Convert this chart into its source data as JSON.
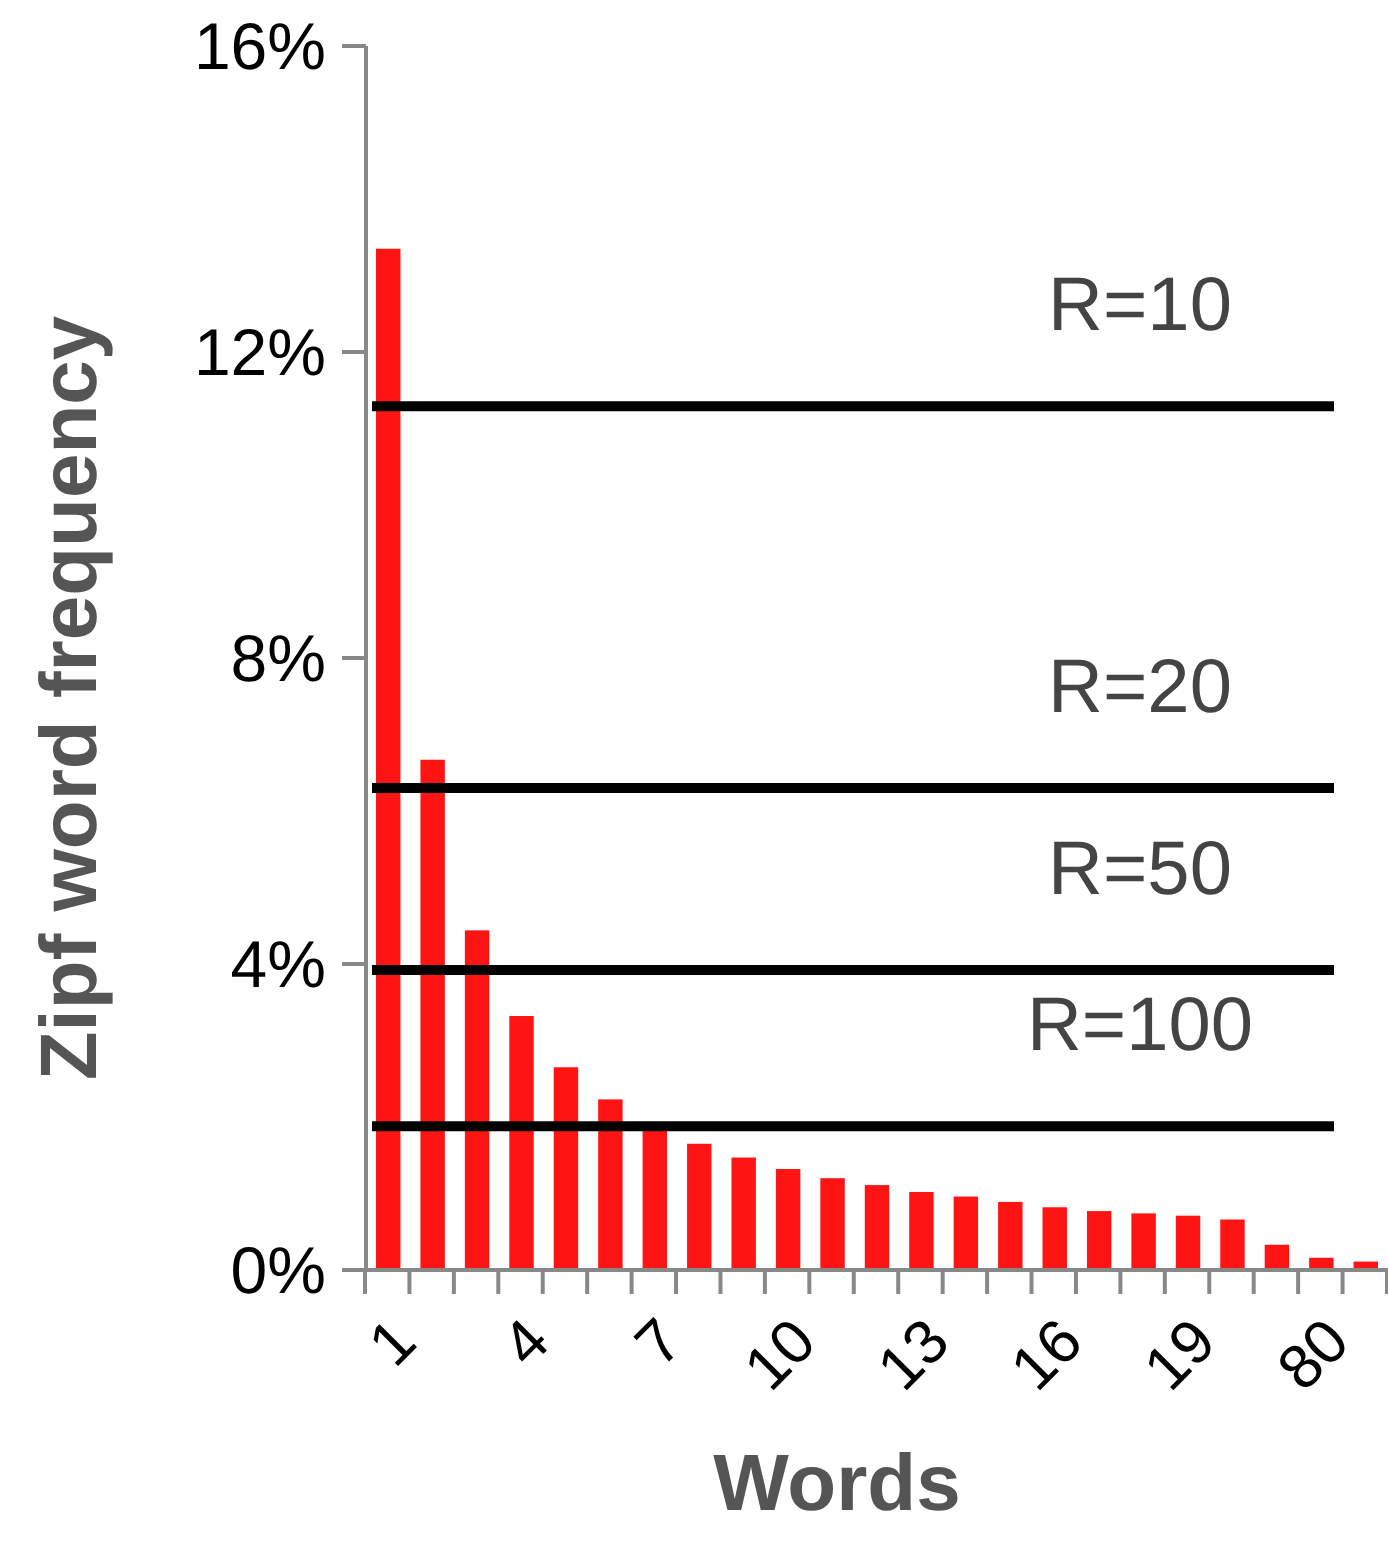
{
  "chart_data": {
    "type": "bar",
    "xlabel": "Words",
    "ylabel": "Zipf word frequency",
    "categories": [
      "1",
      null,
      null,
      "4",
      null,
      null,
      "7",
      null,
      null,
      "10",
      null,
      null,
      "13",
      null,
      null,
      "16",
      null,
      null,
      "19",
      null,
      null,
      "80",
      null
    ],
    "values": [
      13.35,
      6.67,
      4.44,
      3.32,
      2.65,
      2.23,
      1.83,
      1.65,
      1.47,
      1.32,
      1.2,
      1.11,
      1.02,
      0.96,
      0.89,
      0.82,
      0.77,
      0.74,
      0.71,
      0.66,
      0.33,
      0.16,
      0.11
    ],
    "color": "#ff1414",
    "ylim": [
      0,
      16
    ],
    "yticks": [
      {
        "value": 0,
        "label": "0%"
      },
      {
        "value": 4,
        "label": "4%"
      },
      {
        "value": 8,
        "label": "8%"
      },
      {
        "value": 12,
        "label": "12%"
      },
      {
        "value": 16,
        "label": "16%"
      }
    ],
    "ref_lines": [
      {
        "axis": "y",
        "value": 11.29,
        "color": "#000000"
      },
      {
        "axis": "y",
        "value": 6.3,
        "color": "#000000"
      },
      {
        "axis": "y",
        "value": 3.92,
        "color": "#000000"
      },
      {
        "axis": "y",
        "value": 1.88,
        "color": "#000000"
      }
    ],
    "annotations": [
      {
        "text": "R=10",
        "y": 11.29
      },
      {
        "text": "R=20",
        "y": 6.3
      },
      {
        "text": "R=50",
        "y": 3.92
      },
      {
        "text": "R=100",
        "y": 1.88
      }
    ],
    "grid": false
  }
}
